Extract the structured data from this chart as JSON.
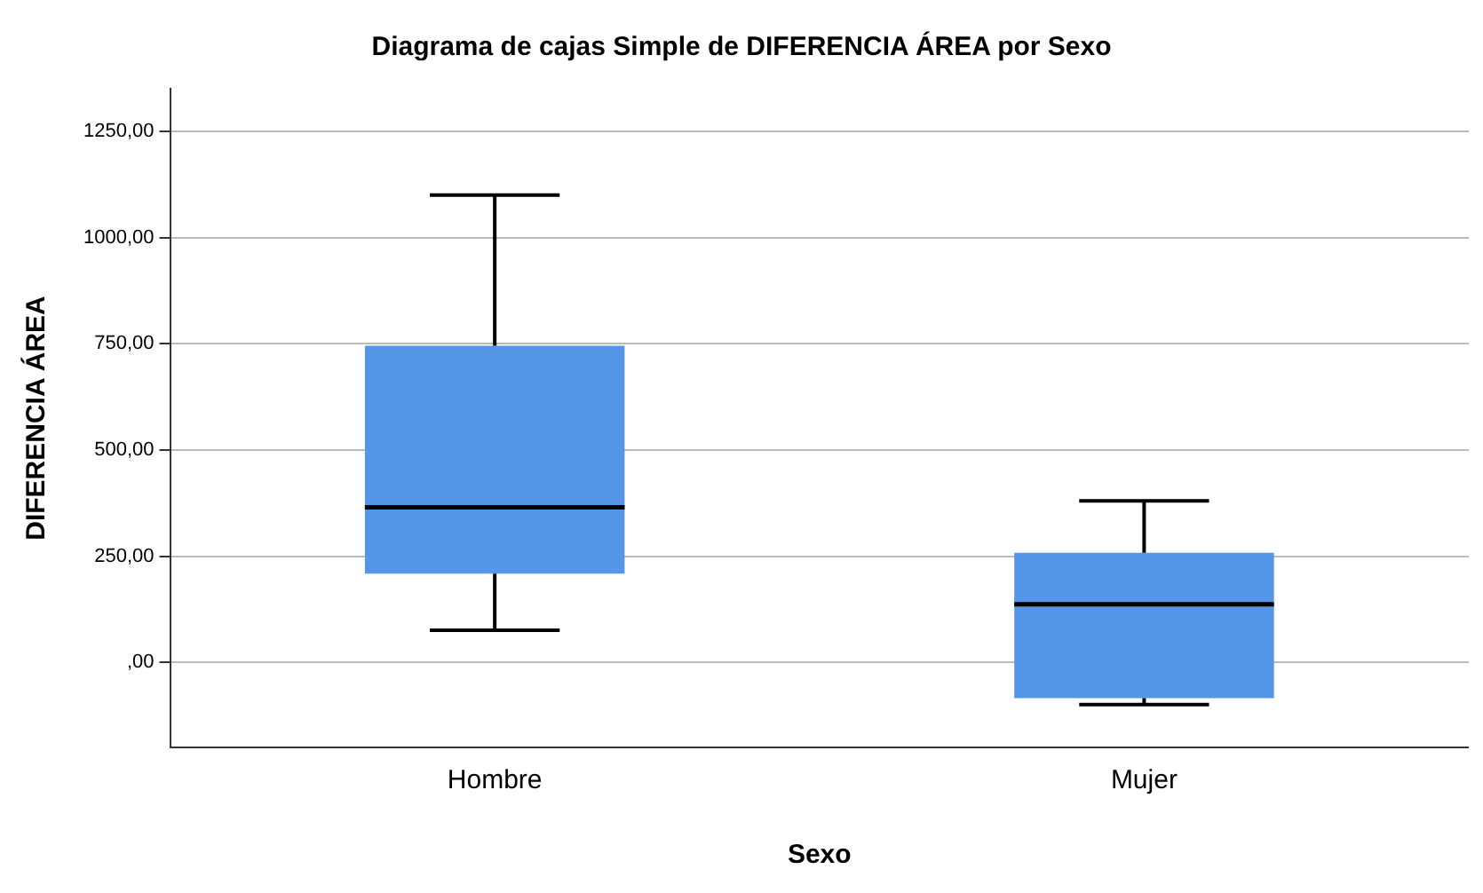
{
  "chart_data": {
    "type": "box",
    "title": "Diagrama de cajas Simple de DIFERENCIA ÁREA por Sexo",
    "xlabel": "Sexo",
    "ylabel": "DIFERENCIA ÁREA",
    "categories": [
      "Hombre",
      "Mujer"
    ],
    "color": "#5596e6",
    "boxes": [
      {
        "low": 76,
        "q1": 209,
        "median": 365,
        "q3": 745,
        "high": 1100
      },
      {
        "low": -99,
        "q1": -84,
        "median": 137,
        "q3": 258,
        "high": 380
      }
    ],
    "ylim": [
      -200,
      1350
    ],
    "yticks": [
      {
        "value": 0,
        "label": ",00"
      },
      {
        "value": 250,
        "label": "250,00"
      },
      {
        "value": 500,
        "label": "500,00"
      },
      {
        "value": 750,
        "label": "750,00"
      },
      {
        "value": 1000,
        "label": "1000,00"
      },
      {
        "value": 1250,
        "label": "1250,00"
      }
    ],
    "grid": "y",
    "legend": false
  }
}
